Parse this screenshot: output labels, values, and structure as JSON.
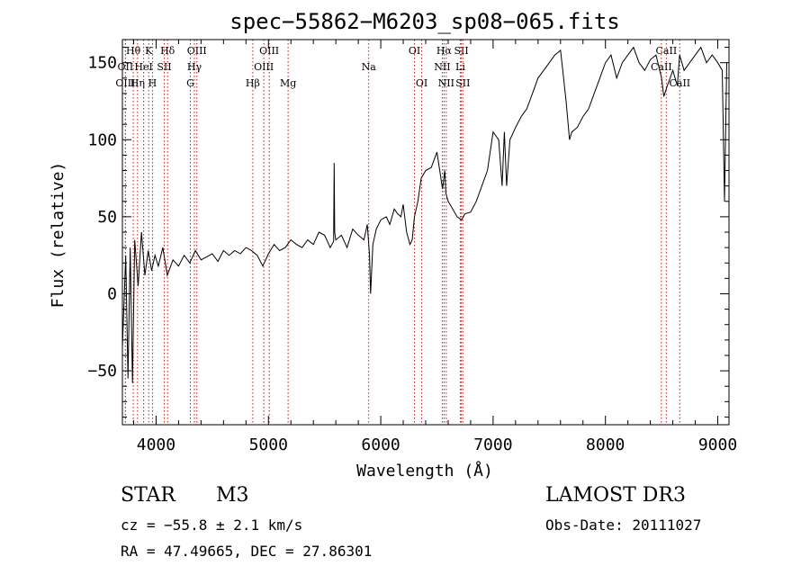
{
  "chart_data": {
    "type": "line",
    "title": "spec−55862−M6203_sp08−065.fits",
    "xlabel": "Wavelength (Å)",
    "ylabel": "Flux (relative)",
    "xlim": [
      3700,
      9100
    ],
    "ylim": [
      -85,
      165
    ],
    "x_ticks": [
      4000,
      5000,
      6000,
      7000,
      8000,
      9000
    ],
    "y_ticks": [
      -50,
      0,
      50,
      100,
      150
    ],
    "x_tick_labels": [
      "4000",
      "5000",
      "6000",
      "7000",
      "8000",
      "9000"
    ],
    "y_tick_labels": [
      "−50",
      "0",
      "50",
      "100",
      "150"
    ],
    "series": [
      {
        "name": "flux",
        "x": [
          3700,
          3730,
          3750,
          3770,
          3790,
          3810,
          3840,
          3870,
          3900,
          3930,
          3960,
          3990,
          4020,
          4060,
          4100,
          4150,
          4200,
          4250,
          4300,
          4350,
          4400,
          4450,
          4500,
          4550,
          4600,
          4650,
          4700,
          4750,
          4800,
          4850,
          4900,
          4950,
          5000,
          5050,
          5100,
          5150,
          5200,
          5250,
          5300,
          5350,
          5400,
          5450,
          5500,
          5550,
          5580,
          5585,
          5590,
          5600,
          5650,
          5700,
          5750,
          5800,
          5850,
          5880,
          5900,
          5910,
          5930,
          5960,
          6000,
          6050,
          6080,
          6100,
          6120,
          6150,
          6180,
          6200,
          6230,
          6260,
          6280,
          6300,
          6330,
          6360,
          6400,
          6450,
          6500,
          6550,
          6570,
          6580,
          6600,
          6640,
          6680,
          6720,
          6750,
          6800,
          6850,
          6900,
          6950,
          7000,
          7050,
          7080,
          7100,
          7120,
          7150,
          7200,
          7250,
          7300,
          7350,
          7400,
          7450,
          7500,
          7550,
          7600,
          7620,
          7650,
          7680,
          7700,
          7750,
          7800,
          7850,
          7900,
          7950,
          8000,
          8050,
          8100,
          8150,
          8200,
          8250,
          8300,
          8350,
          8400,
          8450,
          8500,
          8520,
          8550,
          8600,
          8640,
          8660,
          8700,
          8750,
          8800,
          8850,
          8900,
          8950,
          9000,
          9040,
          9060,
          9080
        ],
        "values": [
          -35,
          25,
          -55,
          30,
          -58,
          35,
          5,
          40,
          12,
          28,
          15,
          25,
          18,
          30,
          12,
          22,
          18,
          25,
          20,
          28,
          22,
          24,
          26,
          21,
          28,
          25,
          28,
          26,
          30,
          28,
          25,
          18,
          26,
          32,
          28,
          30,
          35,
          32,
          30,
          35,
          32,
          40,
          38,
          30,
          34,
          85,
          40,
          35,
          38,
          30,
          42,
          38,
          35,
          45,
          25,
          0,
          32,
          42,
          48,
          50,
          45,
          50,
          55,
          52,
          50,
          58,
          40,
          32,
          35,
          50,
          60,
          75,
          80,
          82,
          92,
          68,
          80,
          65,
          60,
          55,
          50,
          48,
          52,
          53,
          60,
          70,
          80,
          105,
          100,
          70,
          105,
          70,
          100,
          108,
          115,
          120,
          130,
          140,
          145,
          150,
          155,
          158,
          145,
          125,
          100,
          105,
          108,
          115,
          120,
          130,
          140,
          150,
          155,
          140,
          150,
          155,
          160,
          150,
          145,
          152,
          155,
          140,
          128,
          135,
          145,
          135,
          155,
          145,
          150,
          155,
          160,
          150,
          155,
          150,
          145,
          60,
          150
        ]
      }
    ],
    "line_markers": [
      {
        "name": "Hθ",
        "x": 3797,
        "row": 0
      },
      {
        "name": "K",
        "x": 3934,
        "row": 0
      },
      {
        "name": "Hδ",
        "x": 4102,
        "row": 0
      },
      {
        "name": "OIII",
        "x": 4363,
        "row": 0
      },
      {
        "name": "OIII",
        "x": 5007,
        "row": 0
      },
      {
        "name": "OI",
        "x": 6300,
        "row": 0
      },
      {
        "name": "Hα",
        "x": 6563,
        "row": 0
      },
      {
        "name": "SII",
        "x": 6717,
        "row": 0
      },
      {
        "name": "CaII",
        "x": 8542,
        "row": 0
      },
      {
        "name": "OII",
        "x": 3727,
        "row": 1
      },
      {
        "name": "HeI",
        "x": 3889,
        "row": 1
      },
      {
        "name": "SII",
        "x": 4072,
        "row": 1
      },
      {
        "name": "Hγ",
        "x": 4341,
        "row": 1
      },
      {
        "name": "OIII",
        "x": 4959,
        "row": 1
      },
      {
        "name": "Na",
        "x": 5893,
        "row": 1
      },
      {
        "name": "NII",
        "x": 6548,
        "row": 1
      },
      {
        "name": "Li",
        "x": 6708,
        "row": 1
      },
      {
        "name": "CaII",
        "x": 8498,
        "row": 1
      },
      {
        "name": "OIII",
        "x": 3727,
        "row": 2
      },
      {
        "name": "Hη",
        "x": 3835,
        "row": 2
      },
      {
        "name": "H",
        "x": 3968,
        "row": 2
      },
      {
        "name": "G",
        "x": 4305,
        "row": 2
      },
      {
        "name": "Hβ",
        "x": 4861,
        "row": 2
      },
      {
        "name": "Mg",
        "x": 5175,
        "row": 2
      },
      {
        "name": "OI",
        "x": 6364,
        "row": 2
      },
      {
        "name": "NII",
        "x": 6583,
        "row": 2
      },
      {
        "name": "SII",
        "x": 6731,
        "row": 2
      },
      {
        "name": "CaII",
        "x": 8662,
        "row": 2
      }
    ]
  },
  "info": {
    "object_type": "STAR",
    "subclass": "M3",
    "survey": "LAMOST DR3",
    "cz": "cz = −55.8 ± 2.1 km/s",
    "obs_date": "Obs-Date: 20111027",
    "coords": "RA =  47.49665, DEC =  27.86301"
  },
  "colors": {
    "axis": "#000000",
    "spectrum": "#000000",
    "marker_line": "#b02020"
  }
}
